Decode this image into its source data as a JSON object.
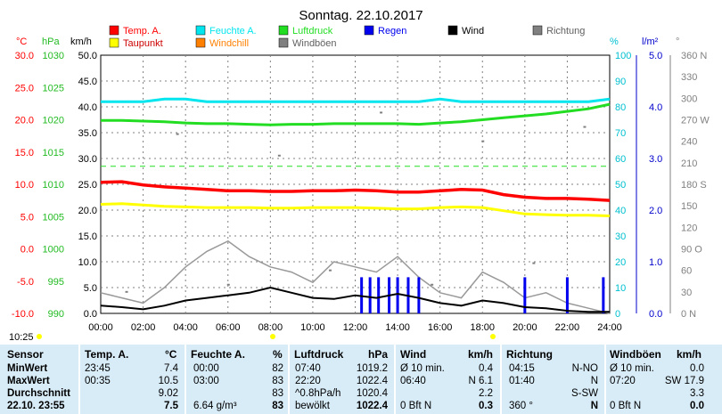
{
  "page": {
    "title": "Sonntag. 22.10.2017",
    "time_label": "10:25"
  },
  "axes": {
    "celsius_unit": "°C",
    "hpa_unit": "hPa",
    "kmh_unit": "km/h",
    "pct_unit": "%",
    "rain_unit": "l/m²",
    "deg_unit": "°",
    "celsius_ticks": [
      "30.0",
      "25.0",
      "20.0",
      "15.0",
      "10.0",
      "5.0",
      "0.0",
      "-5.0",
      "-10.0"
    ],
    "hpa_ticks": [
      "1030",
      "1025",
      "1020",
      "1015",
      "1010",
      "1005",
      "1000",
      "995",
      "990"
    ],
    "kmh_ticks": [
      "50.0",
      "45.0",
      "40.0",
      "35.0",
      "30.0",
      "25.0",
      "20.0",
      "15.0",
      "10.0",
      "5.0",
      "0.0"
    ],
    "pct_ticks": [
      "100",
      "90",
      "80",
      "70",
      "60",
      "50",
      "40",
      "30",
      "20",
      "10",
      "0"
    ],
    "rain_ticks": [
      "5.0",
      "4.0",
      "3.0",
      "2.0",
      "1.0",
      "0.0"
    ],
    "deg_ticks": [
      "360 N",
      "330",
      "300",
      "270 W",
      "240",
      "210",
      "180 S",
      "150",
      "120",
      "90 O",
      "60",
      "30",
      "0 N"
    ],
    "x_ticks": [
      "00:00",
      "02:00",
      "04:00",
      "06:00",
      "08:00",
      "10:00",
      "12:00",
      "14:00",
      "16:00",
      "18:00",
      "20:00",
      "22:00",
      "24:00"
    ]
  },
  "legend": [
    {
      "label": "Temp. A.",
      "color": "#ff0000"
    },
    {
      "label": "Feuchte A.",
      "color": "#00e5ee"
    },
    {
      "label": "Luftdruck",
      "color": "#22dd22"
    },
    {
      "label": "Regen",
      "color": "#0000ee"
    },
    {
      "label": "Wind",
      "color": "#000000"
    },
    {
      "label": "Richtung",
      "color": "#808080"
    },
    {
      "label": "Taupunkt",
      "color": "#ffff00"
    },
    {
      "label": "Windchill",
      "color": "#ff8000"
    },
    {
      "label": "Windböen",
      "color": "#808080"
    }
  ],
  "chart_data": {
    "type": "line",
    "x_hours": [
      0,
      1,
      2,
      3,
      4,
      5,
      6,
      7,
      8,
      9,
      10,
      11,
      12,
      13,
      14,
      15,
      16,
      17,
      18,
      19,
      20,
      21,
      22,
      23,
      24
    ],
    "series": [
      {
        "name": "Temp. A.",
        "unit": "°C",
        "color": "#ff0000",
        "values": [
          10.3,
          10.4,
          9.9,
          9.6,
          9.4,
          9.2,
          9.0,
          9.0,
          8.9,
          8.9,
          9.0,
          9.0,
          9.1,
          9.0,
          8.8,
          8.8,
          9.0,
          9.2,
          9.1,
          8.4,
          8.0,
          7.8,
          7.8,
          7.7,
          7.5
        ]
      },
      {
        "name": "Taupunkt",
        "unit": "°C",
        "color": "#ffff00",
        "values": [
          6.9,
          7.0,
          6.8,
          6.6,
          6.5,
          6.4,
          6.4,
          6.4,
          6.3,
          6.3,
          6.4,
          6.4,
          6.4,
          6.3,
          6.2,
          6.2,
          6.4,
          6.5,
          6.4,
          5.9,
          5.4,
          5.3,
          5.2,
          5.2,
          5.1
        ]
      },
      {
        "name": "Feuchte A.",
        "unit": "%",
        "color": "#00e5ee",
        "values": [
          82,
          82,
          82,
          83,
          83,
          82,
          82,
          82,
          82,
          82,
          82,
          82,
          82,
          82,
          82,
          82,
          83,
          82,
          82,
          82,
          82,
          82,
          82,
          82,
          83
        ]
      },
      {
        "name": "Luftdruck",
        "unit": "hPa",
        "color": "#22dd22",
        "values": [
          1019.9,
          1019.9,
          1019.8,
          1019.7,
          1019.5,
          1019.4,
          1019.4,
          1019.3,
          1019.2,
          1019.3,
          1019.3,
          1019.4,
          1019.4,
          1019.4,
          1019.4,
          1019.3,
          1019.5,
          1019.7,
          1020.0,
          1020.3,
          1020.6,
          1020.9,
          1021.3,
          1021.7,
          1022.4
        ]
      },
      {
        "name": "Wind",
        "unit": "km/h",
        "color": "#000000",
        "values": [
          1.5,
          1.2,
          0.8,
          1.5,
          2.5,
          3.0,
          3.5,
          4.0,
          5.0,
          4.0,
          3.0,
          2.8,
          3.5,
          3.0,
          3.8,
          3.0,
          2.0,
          1.5,
          2.5,
          2.0,
          1.2,
          1.0,
          0.5,
          0.3,
          0.3
        ]
      },
      {
        "name": "Windböen",
        "unit": "km/h",
        "color": "#999999",
        "values": [
          4,
          3,
          2,
          5,
          9,
          12,
          14,
          11,
          9,
          8,
          6,
          10,
          9,
          8,
          11,
          7,
          4,
          3,
          8,
          6,
          3,
          4,
          2,
          1,
          0
        ]
      },
      {
        "name": "Regen",
        "unit": "l/m²",
        "color": "#0000ee",
        "type": "bar",
        "x": [
          12.3,
          12.7,
          13.1,
          13.6,
          14.0,
          14.5,
          15.0,
          20.0,
          22.0,
          23.7
        ],
        "values": [
          0.7,
          0.7,
          0.7,
          0.7,
          0.7,
          0.7,
          0.7,
          0.7,
          0.7,
          0.7
        ]
      },
      {
        "name": "Richtung",
        "unit": "°",
        "color": "#808080",
        "type": "scatter-band",
        "values": [
          30,
          250,
          40,
          220,
          60,
          280,
          40,
          240,
          70,
          260
        ]
      }
    ]
  },
  "table": {
    "headers": [
      "Sensor",
      "Temp. A.",
      "°C",
      "Feuchte A.",
      "%",
      "Luftdruck",
      "hPa",
      "Wind",
      "km/h",
      "Richtung",
      "Windböen",
      "km/h"
    ],
    "rows": [
      {
        "label": "MinWert",
        "temp_time": "23:45",
        "temp_val": "7.4",
        "hum_time": "00:00",
        "hum_val": "82",
        "pres_time": "07:40",
        "pres_val": "1019.2",
        "wind_time": "Ø 10 min.",
        "wind_val": "0.4",
        "dir_time": "04:15",
        "dir_val": "N-NO",
        "gust_time": "Ø 10 min.",
        "gust_val": "0.0"
      },
      {
        "label": "MaxWert",
        "temp_time": "00:35",
        "temp_val": "10.5",
        "hum_time": "03:00",
        "hum_val": "83",
        "pres_time": "22:20",
        "pres_val": "1022.4",
        "wind_time": "06:40",
        "wind_val": "N 6.1",
        "dir_time": "01:40",
        "dir_val": "N",
        "gust_time": "07:20",
        "gust_val": "SW 17.9"
      },
      {
        "label": "Durchschnitt",
        "temp_time": "",
        "temp_val": "9.02",
        "hum_time": "",
        "hum_val": "83",
        "pres_time": "^0.8hPa/h",
        "pres_val": "1020.4",
        "wind_time": "",
        "wind_val": "2.2",
        "dir_time": "",
        "dir_val": "S-SW",
        "gust_time": "",
        "gust_val": "3.3"
      },
      {
        "label": "22.10. 23:55",
        "temp_time": "",
        "temp_val": "7.5",
        "hum_time": "6.64 g/m³",
        "hum_val": "83",
        "pres_time": "bewölkt",
        "pres_val": "1022.4",
        "wind_time": "0 Bft N",
        "wind_val": "0.3",
        "dir_time": "360 °",
        "dir_val": "N",
        "gust_time": "0 Bft N",
        "gust_val": "0.0"
      }
    ]
  }
}
